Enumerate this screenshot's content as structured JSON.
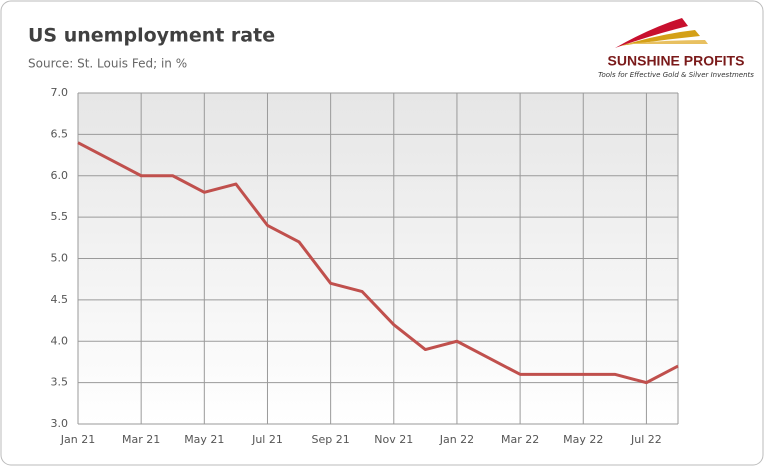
{
  "chart_data": {
    "type": "line",
    "title": "US unemployment rate",
    "subtitle": "Source: St. Louis Fed; in %",
    "categories": [
      "Jan 21",
      null,
      "Mar 21",
      null,
      "May 21",
      null,
      "Jul 21",
      null,
      "Sep 21",
      null,
      "Nov 21",
      null,
      "Jan 22",
      null,
      "Mar 22",
      null,
      "May 22",
      null,
      "Jul 22",
      null
    ],
    "values": [
      6.4,
      6.2,
      6.0,
      6.0,
      5.8,
      5.9,
      5.4,
      5.2,
      4.7,
      4.6,
      4.2,
      3.9,
      4.0,
      3.8,
      3.6,
      3.6,
      3.6,
      3.6,
      3.5,
      3.7
    ],
    "color": "#c0504d",
    "ylim": [
      3,
      7
    ],
    "yticks": [
      {
        "value": 3,
        "label": "3.0"
      },
      {
        "value": 3.5,
        "label": "3.5"
      },
      {
        "value": 4,
        "label": "4.0"
      },
      {
        "value": 4.5,
        "label": "4.5"
      },
      {
        "value": 5,
        "label": "5.0"
      },
      {
        "value": 5.5,
        "label": "5.5"
      },
      {
        "value": 6,
        "label": "6.0"
      },
      {
        "value": 6.5,
        "label": "6.5"
      },
      {
        "value": 7,
        "label": "7.0"
      }
    ],
    "grid": true
  },
  "logo": {
    "name": "SUNSHINE PROFITS",
    "tagline": "Tools for Effective Gold & Silver Investments"
  }
}
